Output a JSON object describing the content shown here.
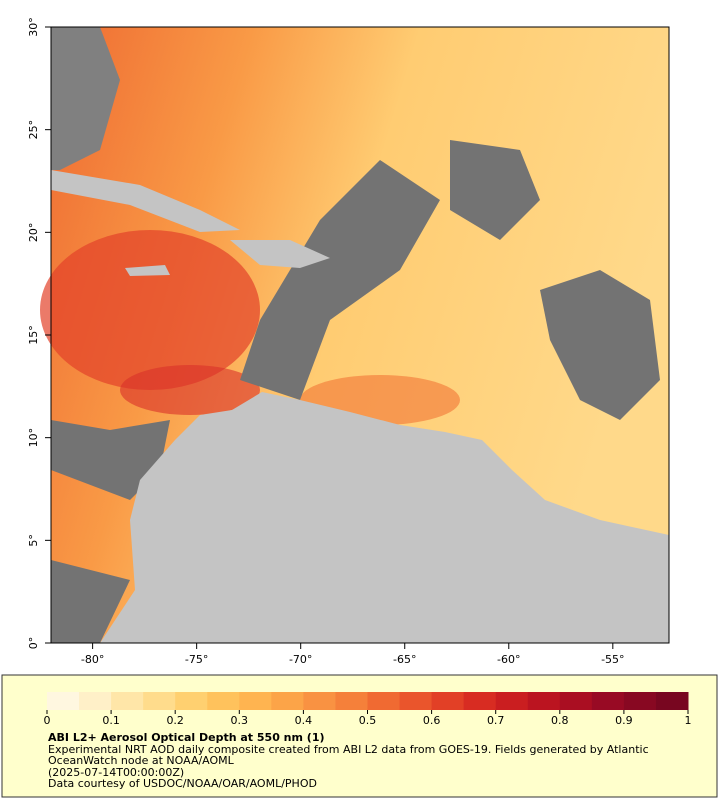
{
  "map": {
    "xlim": [
      -82,
      -52.3
    ],
    "ylim": [
      0,
      30
    ],
    "xticks": [
      {
        "value": -80,
        "label": "-80°"
      },
      {
        "value": -75,
        "label": "-75°"
      },
      {
        "value": -70,
        "label": "-70°"
      },
      {
        "value": -65,
        "label": "-65°"
      },
      {
        "value": -60,
        "label": "-60°"
      },
      {
        "value": -55,
        "label": "-55°"
      }
    ],
    "yticks": [
      {
        "value": 0,
        "label": "0°"
      },
      {
        "value": 5,
        "label": "5°"
      },
      {
        "value": 10,
        "label": "10°"
      },
      {
        "value": 15,
        "label": "15°"
      },
      {
        "value": 20,
        "label": "20°"
      },
      {
        "value": 25,
        "label": "25°"
      },
      {
        "value": 30,
        "label": "30°"
      }
    ]
  },
  "colorbar": {
    "lim": [
      0,
      1
    ],
    "ticks": [
      0,
      0.1,
      0.2,
      0.3,
      0.4,
      0.5,
      0.6,
      0.7,
      0.8,
      0.9,
      1
    ],
    "colors": [
      "#fff7e0",
      "#fff0c8",
      "#ffe6a8",
      "#ffdc8c",
      "#ffd070",
      "#ffc25c",
      "#ffb450",
      "#fca448",
      "#f99242",
      "#f5803a",
      "#f06a32",
      "#ea552c",
      "#e24026",
      "#d82c22",
      "#ca1e20",
      "#bb1420",
      "#aa0e22",
      "#980a24",
      "#880822",
      "#780620"
    ]
  },
  "caption": {
    "title": "ABI L2+ Aerosol Optical Depth at 550 nm (1)",
    "description": "Experimental NRT AOD daily composite created from ABI L2 data from GOES-19. Fields generated by Atlantic OceanWatch node at NOAA/AOML",
    "time": "(2025-07-14T00:00:00Z)",
    "credit": "Data courtesy of USDOC/NOAA/OAR/AOML/PHOD"
  }
}
